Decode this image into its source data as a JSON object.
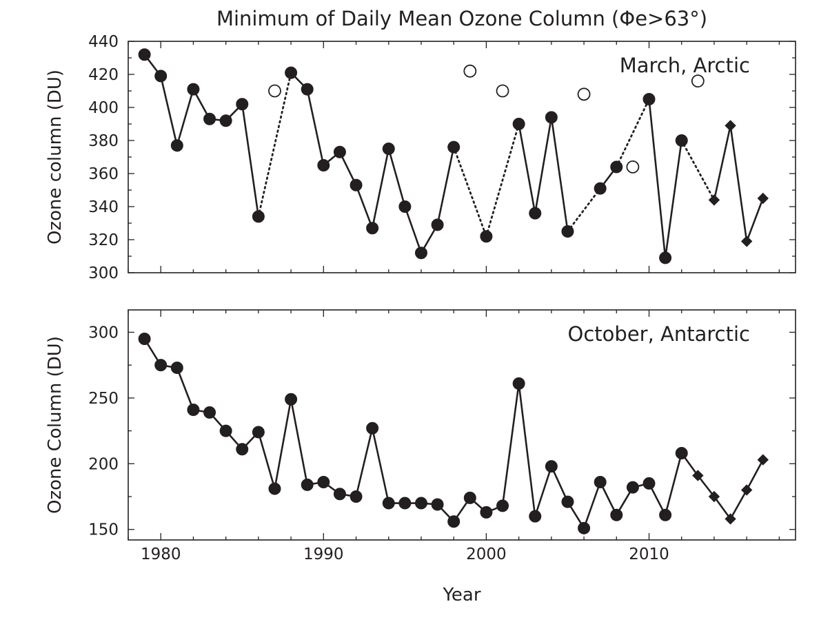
{
  "figure_title": "Minimum of Daily Mean Ozone Column (Φe>63°)",
  "chart_data": [
    {
      "type": "line",
      "title": "Minimum of Daily Mean Ozone Column (Φe>63°)",
      "annotation": "March, Arctic",
      "xlabel": "",
      "ylabel": "Ozone column (DU)",
      "xlim": [
        1978,
        2019
      ],
      "ylim": [
        300,
        440
      ],
      "xticks": [
        1980,
        1990,
        2000,
        2010
      ],
      "yticks": [
        300,
        320,
        340,
        360,
        380,
        400,
        420,
        440
      ],
      "grid": false,
      "legend": "none",
      "series": [
        {
          "marker": "filled-circle",
          "points": [
            [
              1979,
              432
            ],
            [
              1980,
              419
            ],
            [
              1981,
              377
            ],
            [
              1982,
              411
            ],
            [
              1983,
              393
            ],
            [
              1984,
              392
            ],
            [
              1985,
              402
            ],
            [
              1986,
              334
            ],
            [
              1988,
              421
            ],
            [
              1989,
              411
            ],
            [
              1990,
              365
            ],
            [
              1991,
              373
            ],
            [
              1992,
              353
            ],
            [
              1993,
              327
            ],
            [
              1994,
              375
            ],
            [
              1995,
              340
            ],
            [
              1996,
              312
            ],
            [
              1997,
              329
            ],
            [
              1998,
              376
            ],
            [
              2000,
              322
            ],
            [
              2002,
              390
            ],
            [
              2003,
              336
            ],
            [
              2004,
              394
            ],
            [
              2005,
              325
            ],
            [
              2007,
              351
            ],
            [
              2008,
              364
            ],
            [
              2010,
              405
            ],
            [
              2011,
              309
            ],
            [
              2012,
              380
            ]
          ]
        },
        {
          "marker": "filled-diamond",
          "points": [
            [
              2014,
              344
            ],
            [
              2015,
              389
            ],
            [
              2016,
              319
            ],
            [
              2017,
              345
            ]
          ]
        },
        {
          "marker": "open-circle",
          "points": [
            [
              1987,
              410
            ],
            [
              1999,
              422
            ],
            [
              2001,
              410
            ],
            [
              2006,
              408
            ],
            [
              2009,
              364
            ],
            [
              2013,
              416
            ]
          ]
        }
      ],
      "solid_segments": [
        [
          1979,
          1986
        ],
        [
          1988,
          1998
        ],
        [
          2002,
          2005
        ],
        [
          2007,
          2008
        ],
        [
          2010,
          2012
        ],
        [
          2014,
          2017
        ]
      ],
      "dotted_segments": [
        [
          1986,
          1988
        ],
        [
          1998,
          2000
        ],
        [
          2000,
          2002
        ],
        [
          2005,
          2007
        ],
        [
          2008,
          2010
        ],
        [
          2012,
          2014
        ]
      ]
    },
    {
      "type": "line",
      "title": "",
      "annotation": "October, Antarctic",
      "xlabel": "Year",
      "ylabel": "Ozone Column (DU)",
      "xlim": [
        1978,
        2019
      ],
      "ylim": [
        142,
        317
      ],
      "xticks": [
        1980,
        1990,
        2000,
        2010
      ],
      "yticks": [
        150,
        200,
        250,
        300
      ],
      "grid": false,
      "legend": "none",
      "series": [
        {
          "marker": "filled-circle",
          "points": [
            [
              1979,
              295
            ],
            [
              1980,
              275
            ],
            [
              1981,
              273
            ],
            [
              1982,
              241
            ],
            [
              1983,
              239
            ],
            [
              1984,
              225
            ],
            [
              1985,
              211
            ],
            [
              1986,
              224
            ],
            [
              1987,
              181
            ],
            [
              1988,
              249
            ],
            [
              1989,
              184
            ],
            [
              1990,
              186
            ],
            [
              1991,
              177
            ],
            [
              1992,
              175
            ],
            [
              1993,
              227
            ],
            [
              1994,
              170
            ],
            [
              1995,
              170
            ],
            [
              1996,
              170
            ],
            [
              1997,
              169
            ],
            [
              1998,
              156
            ],
            [
              1999,
              174
            ],
            [
              2000,
              163
            ],
            [
              2001,
              168
            ],
            [
              2002,
              261
            ],
            [
              2003,
              160
            ],
            [
              2004,
              198
            ],
            [
              2005,
              171
            ],
            [
              2006,
              151
            ],
            [
              2007,
              186
            ],
            [
              2008,
              161
            ],
            [
              2009,
              182
            ],
            [
              2010,
              185
            ],
            [
              2011,
              161
            ],
            [
              2012,
              208
            ]
          ]
        },
        {
          "marker": "filled-diamond",
          "points": [
            [
              2013,
              191
            ],
            [
              2014,
              175
            ],
            [
              2015,
              158
            ],
            [
              2016,
              180
            ],
            [
              2017,
              203
            ]
          ]
        }
      ],
      "solid_segments": [
        [
          1979,
          2017
        ]
      ],
      "dotted_segments": []
    }
  ]
}
